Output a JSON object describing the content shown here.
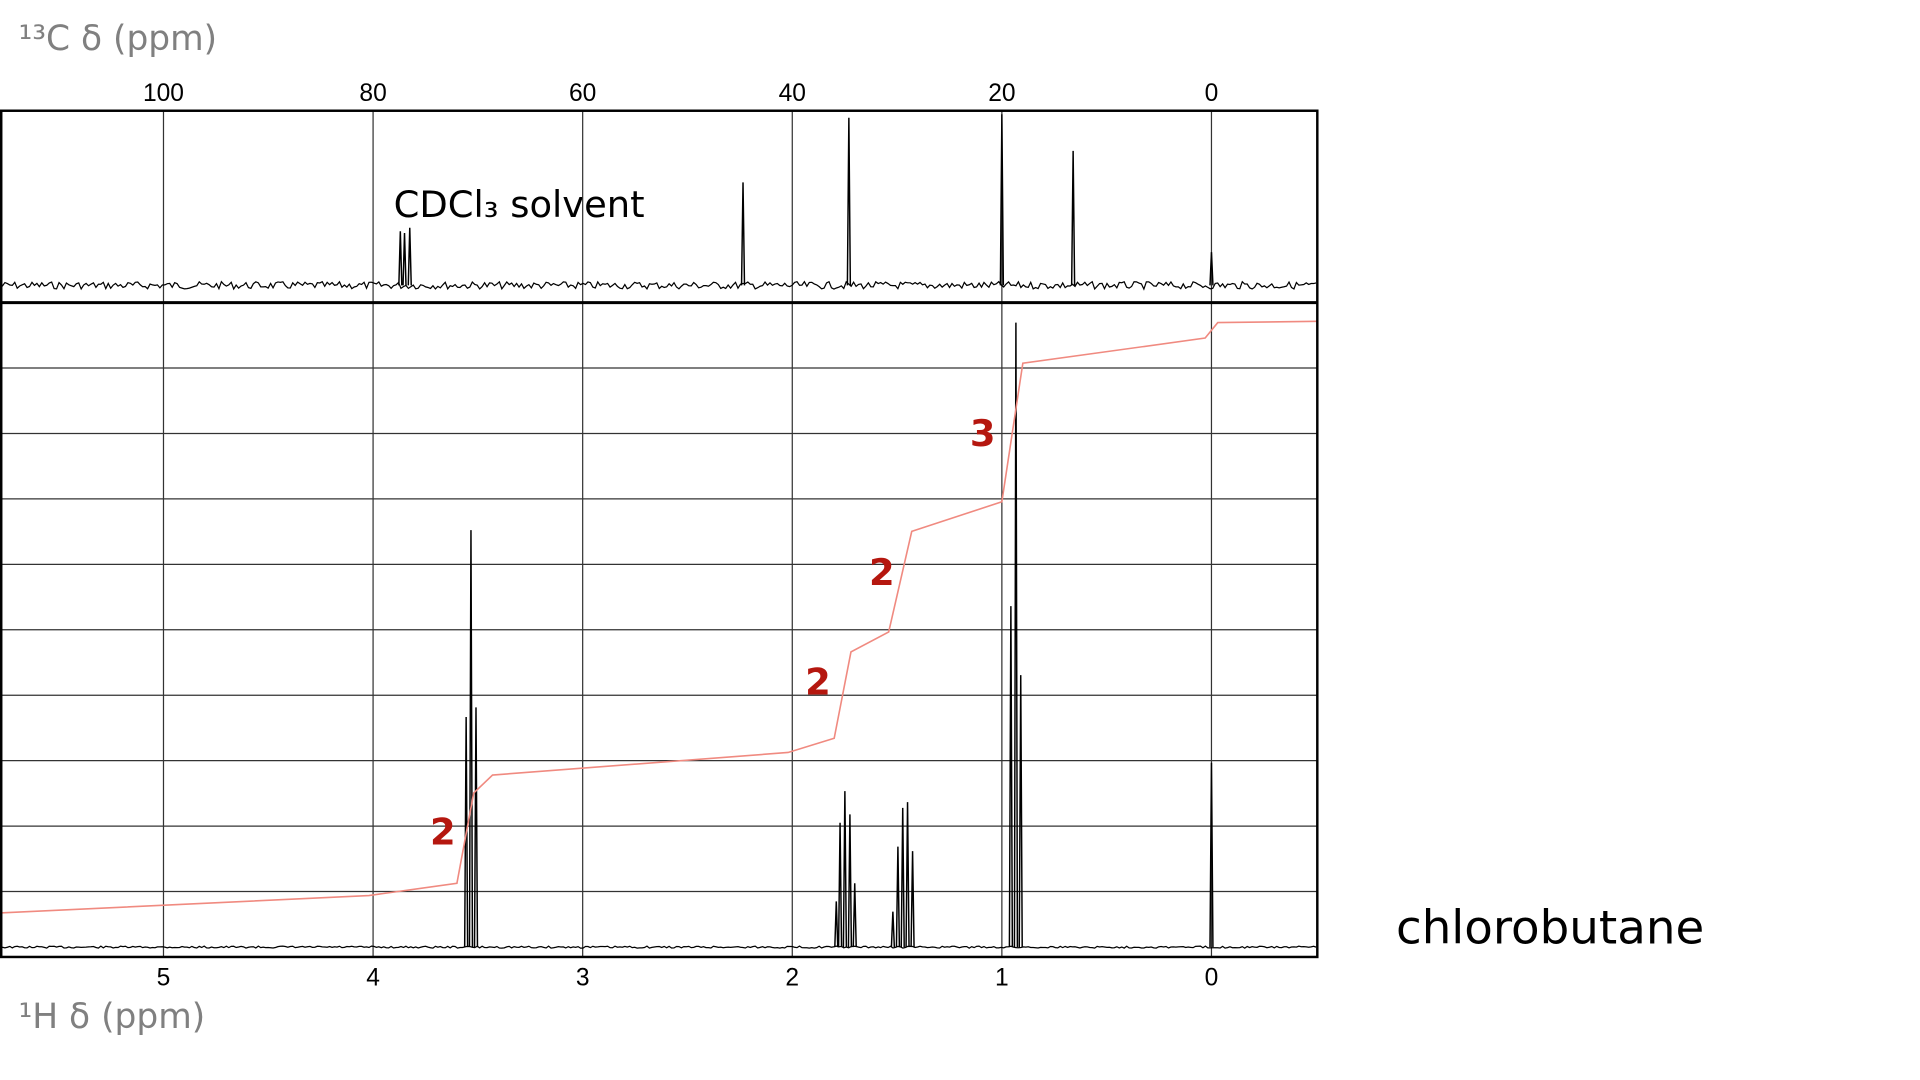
{
  "chart_data": {
    "type": "nmr",
    "compound": "chlorobutane",
    "carbon": {
      "label": "¹³C δ (ppm)",
      "xlim": [
        115.6,
        -10.1
      ],
      "xticks": [
        100,
        80,
        60,
        40,
        20,
        0
      ],
      "ylim": [
        0,
        100
      ],
      "annotation": "CDCl₃ solvent",
      "peaks": {
        "x": [
          77.4,
          77.0,
          76.5,
          44.7,
          34.6,
          20.0,
          13.2,
          0
        ],
        "values": [
          31,
          30,
          33,
          59,
          96,
          98,
          77,
          19
        ]
      },
      "color": "#000000"
    },
    "proton": {
      "label": "¹H δ (ppm)",
      "xlim": [
        5.78,
        -0.505
      ],
      "xticks": [
        5,
        4,
        3,
        2,
        1,
        0
      ],
      "ylim": [
        0,
        100
      ],
      "peaks": {
        "x": [
          3.556,
          3.533,
          3.509,
          1.79,
          1.772,
          1.749,
          1.725,
          1.702,
          1.52,
          1.496,
          1.473,
          1.45,
          1.426,
          0.957,
          0.933,
          0.91,
          0
        ],
        "values": [
          35.7,
          64.7,
          37.2,
          7.1,
          19.3,
          24.2,
          20.6,
          9.9,
          5.5,
          15.6,
          21.6,
          22.5,
          14.9,
          52.9,
          96.9,
          42.2,
          28.6
        ]
      },
      "color": "#000000",
      "integral": {
        "x": [
          5.78,
          4.02,
          3.6,
          3.52,
          3.43,
          2.02,
          1.8,
          1.72,
          1.54,
          1.43,
          1.0,
          0.9,
          0.03,
          -0.03,
          -0.505
        ],
        "values": [
          5.3,
          8.0,
          9.9,
          23.9,
          26.7,
          30.2,
          32.4,
          45.8,
          48.9,
          64.5,
          69.1,
          90.6,
          94.5,
          96.9,
          97.1
        ],
        "color": "#f08a80"
      },
      "integration_labels": {
        "values": [
          2,
          2,
          2,
          3
        ],
        "color": "#b5170f"
      }
    }
  }
}
